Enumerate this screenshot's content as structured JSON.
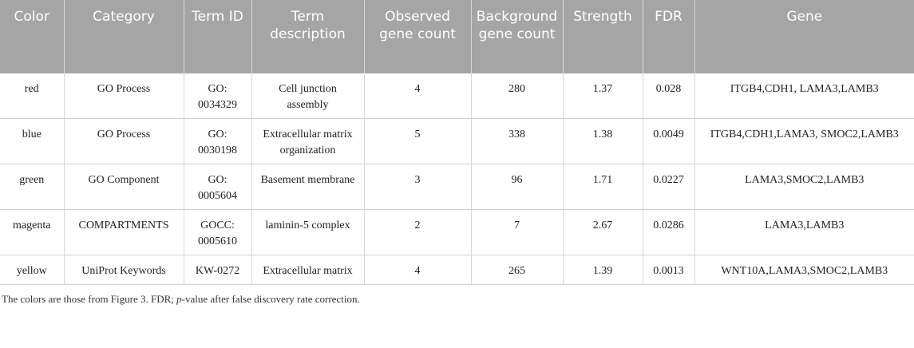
{
  "table": {
    "header": [
      "Color",
      "Category",
      "Term ID",
      "Term description",
      "Observed gene count",
      "Background gene count",
      "Strength",
      "FDR",
      "Gene"
    ],
    "rows": [
      [
        "red",
        "GO Process",
        "GO: 0034329",
        "Cell junction assembly",
        "4",
        "280",
        "1.37",
        "0.028",
        "ITGB4,CDH1, LAMA3,LAMB3"
      ],
      [
        "blue",
        "GO Process",
        "GO: 0030198",
        "Extracellular matrix organization",
        "5",
        "338",
        "1.38",
        "0.0049",
        "ITGB4,CDH1,LAMA3, SMOC2,LAMB3"
      ],
      [
        "green",
        "GO Component",
        "GO: 0005604",
        "Basement membrane",
        "3",
        "96",
        "1.71",
        "0.0227",
        "LAMA3,SMOC2,LAMB3"
      ],
      [
        "magenta",
        "COMPARTMENTS",
        "GOCC: 0005610",
        "laminin-5 complex",
        "2",
        "7",
        "2.67",
        "0.0286",
        "LAMA3,LAMB3"
      ],
      [
        "yellow",
        "UniProt Keywords",
        "KW-0272",
        "Extracellular matrix",
        "4",
        "265",
        "1.39",
        "0.0013",
        "WNT10A,LAMA3,SMOC2,LAMB3"
      ]
    ]
  },
  "footnote": [
    "The colors are those from Figure 3. FDR; ",
    "p",
    "-value after false discovery rate correction."
  ]
}
